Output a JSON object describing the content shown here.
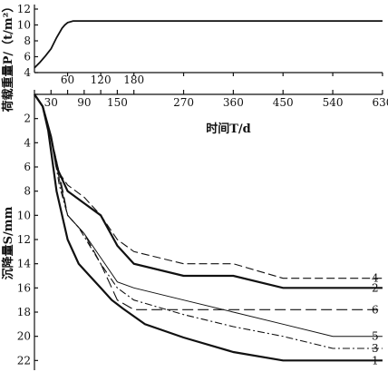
{
  "chart_data": [
    {
      "type": "line",
      "ylabel": "荷载重量P/（t/m²）",
      "yticks": [
        4,
        6,
        8,
        10,
        12
      ],
      "ylim": [
        4,
        12
      ],
      "xlim": [
        0,
        640
      ],
      "grid": false,
      "series": [
        {
          "x": [
            0,
            10,
            20,
            30,
            40,
            50,
            55,
            60,
            70,
            80,
            90,
            120,
            150,
            180,
            270,
            360,
            450,
            540,
            630
          ],
          "values": [
            4.6,
            5.3,
            6.1,
            7.0,
            8.4,
            9.6,
            10.0,
            10.3,
            10.5,
            10.5,
            10.5,
            10.5,
            10.5,
            10.5,
            10.5,
            10.5,
            10.5,
            10.5,
            10.5
          ]
        }
      ]
    },
    {
      "type": "line",
      "xlabel": "时间T/d",
      "ylabel": "沉降量S/mm",
      "xticks": [
        "0",
        "30",
        "60",
        "90",
        "120",
        "150",
        "180",
        "270",
        "360",
        "450",
        "540",
        "630"
      ],
      "xtick_values": [
        0,
        30,
        60,
        90,
        120,
        150,
        180,
        270,
        360,
        450,
        540,
        630
      ],
      "yticks": [
        "0",
        "2",
        "4",
        "6",
        "8",
        "10",
        "12",
        "14",
        "16",
        "18",
        "20",
        "22"
      ],
      "ytick_values": [
        0,
        2,
        4,
        6,
        8,
        10,
        12,
        14,
        16,
        18,
        20,
        22
      ],
      "ylim": [
        0,
        22.5
      ],
      "xlim": [
        0,
        640
      ],
      "y_inverted": true,
      "grid": false,
      "series": [
        {
          "name": "1",
          "style": "solid-thick",
          "x": [
            0,
            15,
            25,
            40,
            60,
            80,
            100,
            120,
            140,
            160,
            200,
            270,
            360,
            450,
            630
          ],
          "values": [
            0,
            1.0,
            3.0,
            8.0,
            12.0,
            14.0,
            15.0,
            16.0,
            17.0,
            17.7,
            19.0,
            20.1,
            21.3,
            22.0,
            22.0
          ]
        },
        {
          "name": "2",
          "style": "solid-thick",
          "x": [
            0,
            15,
            30,
            40,
            60,
            90,
            120,
            150,
            180,
            270,
            360,
            450,
            630
          ],
          "values": [
            0,
            1.0,
            3.5,
            6.0,
            8.0,
            9.0,
            10.0,
            12.5,
            14.0,
            15.0,
            15.0,
            16.0,
            16.0
          ]
        },
        {
          "name": "3",
          "style": "dash-dot",
          "x": [
            0,
            15,
            30,
            45,
            60,
            80,
            100,
            120,
            150,
            180,
            270,
            360,
            450,
            540,
            630
          ],
          "values": [
            0,
            1.0,
            3.5,
            7.5,
            10.0,
            11.0,
            12.5,
            14.0,
            16.0,
            17.0,
            18.2,
            19.2,
            20.0,
            21.0,
            21.0
          ]
        },
        {
          "name": "4",
          "style": "dashed",
          "x": [
            0,
            15,
            30,
            45,
            60,
            90,
            120,
            150,
            180,
            270,
            360,
            450,
            630
          ],
          "values": [
            0,
            1.0,
            3.5,
            6.5,
            7.5,
            8.5,
            10.0,
            12.0,
            13.0,
            14.0,
            14.0,
            15.2,
            15.2
          ]
        },
        {
          "name": "5",
          "style": "solid-thin",
          "x": [
            0,
            15,
            30,
            45,
            60,
            90,
            120,
            150,
            180,
            270,
            360,
            450,
            540,
            630
          ],
          "values": [
            0,
            1.0,
            3.5,
            7.0,
            10.0,
            11.5,
            13.5,
            15.5,
            16.0,
            17.0,
            18.0,
            19.0,
            20.0,
            20.0
          ]
        },
        {
          "name": "6",
          "style": "long-dash",
          "x": [
            0,
            15,
            30,
            45,
            60,
            90,
            120,
            150,
            180,
            360,
            450,
            630
          ],
          "values": [
            0,
            1.0,
            3.5,
            6.5,
            10.0,
            11.5,
            14.0,
            17.0,
            17.8,
            17.8,
            17.8,
            17.8
          ]
        }
      ]
    }
  ]
}
